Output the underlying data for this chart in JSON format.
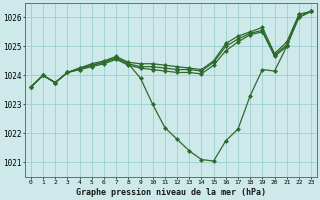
{
  "title": "Graphe pression niveau de la mer (hPa)",
  "background_color": "#cee9e9",
  "line_color": "#2d6a2d",
  "grid_color": "#9ecfcf",
  "x_values": [
    0,
    1,
    2,
    3,
    4,
    5,
    6,
    7,
    8,
    9,
    10,
    11,
    12,
    13,
    14,
    15,
    16,
    17,
    18,
    19,
    20,
    21,
    22,
    23
  ],
  "series": [
    [
      1023.6,
      1024.0,
      1023.75,
      1024.1,
      1024.2,
      1024.35,
      1024.45,
      1024.6,
      1024.4,
      1023.9,
      1023.0,
      1022.2,
      1021.8,
      1021.4,
      1021.1,
      1021.05,
      1021.75,
      1022.15,
      1023.3,
      1024.2,
      1024.15,
      1025.0,
      1026.1,
      1026.2
    ],
    [
      1023.6,
      1024.0,
      1023.75,
      1024.1,
      1024.25,
      1024.4,
      1024.5,
      1024.65,
      1024.45,
      1024.4,
      1024.4,
      1024.35,
      1024.3,
      1024.25,
      1024.2,
      1024.5,
      1025.1,
      1025.35,
      1025.5,
      1025.65,
      1024.75,
      1025.15,
      1026.1,
      1026.2
    ],
    [
      1023.6,
      1024.0,
      1023.75,
      1024.1,
      1024.25,
      1024.35,
      1024.45,
      1024.6,
      1024.4,
      1024.3,
      1024.3,
      1024.25,
      1024.2,
      1024.2,
      1024.15,
      1024.45,
      1025.0,
      1025.25,
      1025.45,
      1025.55,
      1024.7,
      1025.05,
      1026.0,
      1026.2
    ],
    [
      1023.6,
      1024.0,
      1023.75,
      1024.1,
      1024.2,
      1024.3,
      1024.4,
      1024.55,
      1024.35,
      1024.25,
      1024.2,
      1024.15,
      1024.1,
      1024.1,
      1024.05,
      1024.35,
      1024.85,
      1025.15,
      1025.4,
      1025.5,
      1024.65,
      1025.0,
      1026.0,
      1026.2
    ]
  ],
  "ylim": [
    1020.5,
    1026.5
  ],
  "yticks": [
    1021,
    1022,
    1023,
    1024,
    1025,
    1026
  ],
  "ytick_labels": [
    "1021",
    "1022",
    "1023",
    "1024",
    "1025",
    "1026"
  ],
  "xticks": [
    0,
    1,
    2,
    3,
    4,
    5,
    6,
    7,
    8,
    9,
    10,
    11,
    12,
    13,
    14,
    15,
    16,
    17,
    18,
    19,
    20,
    21,
    22,
    23
  ],
  "marker": "D",
  "markersize": 2.0,
  "linewidth": 0.9
}
